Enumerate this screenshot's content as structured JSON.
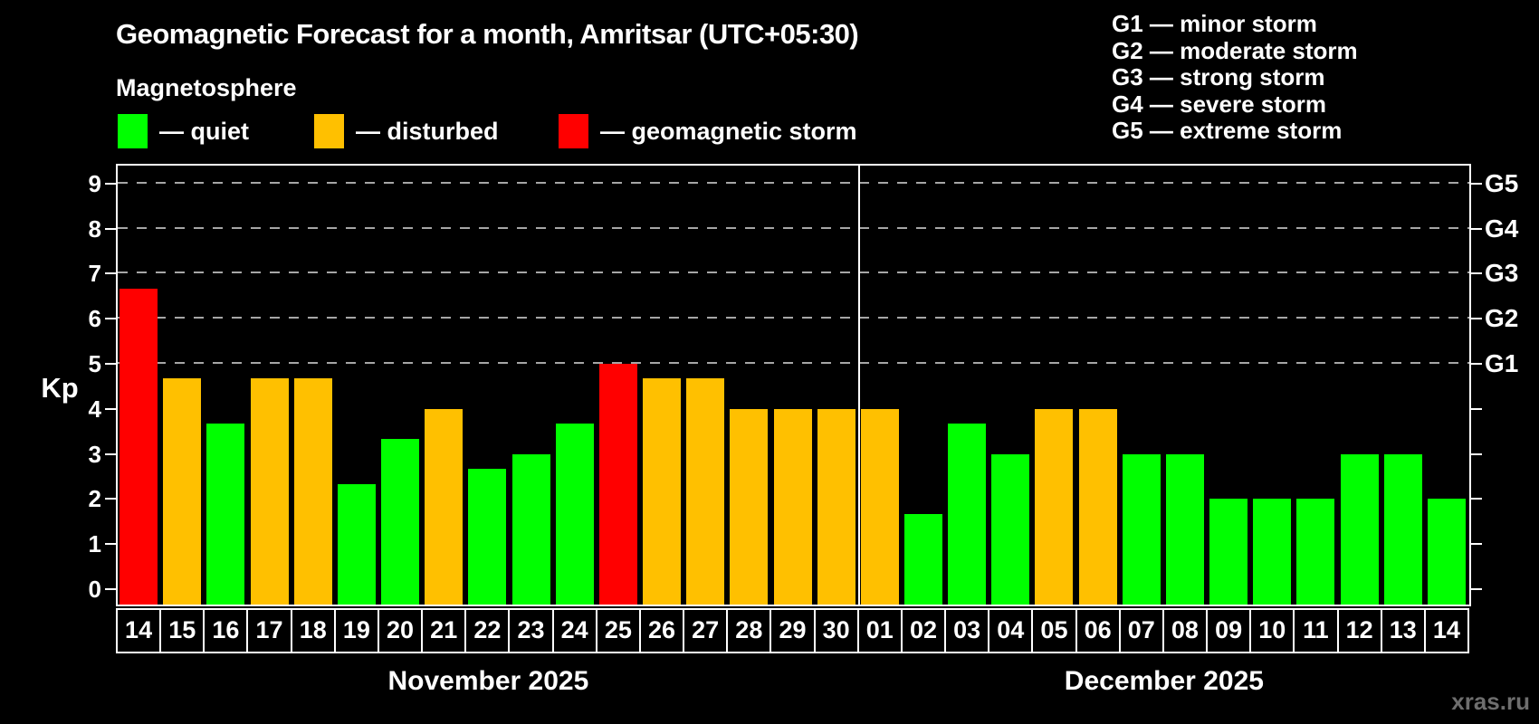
{
  "header": {
    "title": "Geomagnetic Forecast for a month, Amritsar (UTC+05:30)",
    "subtitle": "Magnetosphere"
  },
  "legend": {
    "items": [
      {
        "key": "quiet",
        "label": "— quiet",
        "color": "#00ff00"
      },
      {
        "key": "disturbed",
        "label": "— disturbed",
        "color": "#ffc000"
      },
      {
        "key": "storm",
        "label": "— geomagnetic storm",
        "color": "#ff0000"
      }
    ]
  },
  "storm_scale_legend": {
    "items": [
      "G1 — minor storm",
      "G2 — moderate storm",
      "G3 — strong storm",
      "G4 — severe storm",
      "G5 — extreme storm"
    ]
  },
  "watermark": "xras.ru",
  "chart_data": {
    "type": "bar",
    "title": "Geomagnetic Forecast for a month, Amritsar (UTC+05:30)",
    "ylabel": "Kp",
    "ylim": [
      0,
      9.4
    ],
    "yticks": [
      0,
      1,
      2,
      3,
      4,
      5,
      6,
      7,
      8,
      9
    ],
    "grid": {
      "style": "dashed-horizontal",
      "lines_at_kp": [
        5,
        6,
        7,
        8,
        9
      ]
    },
    "right_axis": [
      {
        "kp": 5,
        "label": "G1"
      },
      {
        "kp": 6,
        "label": "G2"
      },
      {
        "kp": 7,
        "label": "G3"
      },
      {
        "kp": 8,
        "label": "G4"
      },
      {
        "kp": 9,
        "label": "G5"
      }
    ],
    "legend_position": "top-left",
    "months": [
      {
        "label": "November 2025",
        "days": [
          {
            "date": "14",
            "kp": 6.67,
            "status": "storm"
          },
          {
            "date": "15",
            "kp": 4.67,
            "status": "disturbed"
          },
          {
            "date": "16",
            "kp": 3.67,
            "status": "quiet"
          },
          {
            "date": "17",
            "kp": 4.67,
            "status": "disturbed"
          },
          {
            "date": "18",
            "kp": 4.67,
            "status": "disturbed"
          },
          {
            "date": "19",
            "kp": 2.33,
            "status": "quiet"
          },
          {
            "date": "20",
            "kp": 3.33,
            "status": "quiet"
          },
          {
            "date": "21",
            "kp": 4.0,
            "status": "disturbed"
          },
          {
            "date": "22",
            "kp": 2.67,
            "status": "quiet"
          },
          {
            "date": "23",
            "kp": 3.0,
            "status": "quiet"
          },
          {
            "date": "24",
            "kp": 3.67,
            "status": "quiet"
          },
          {
            "date": "25",
            "kp": 5.0,
            "status": "storm"
          },
          {
            "date": "26",
            "kp": 4.67,
            "status": "disturbed"
          },
          {
            "date": "27",
            "kp": 4.67,
            "status": "disturbed"
          },
          {
            "date": "28",
            "kp": 4.0,
            "status": "disturbed"
          },
          {
            "date": "29",
            "kp": 4.0,
            "status": "disturbed"
          },
          {
            "date": "30",
            "kp": 4.0,
            "status": "disturbed"
          }
        ]
      },
      {
        "label": "December 2025",
        "days": [
          {
            "date": "01",
            "kp": 4.0,
            "status": "disturbed"
          },
          {
            "date": "02",
            "kp": 1.67,
            "status": "quiet"
          },
          {
            "date": "03",
            "kp": 3.67,
            "status": "quiet"
          },
          {
            "date": "04",
            "kp": 3.0,
            "status": "quiet"
          },
          {
            "date": "05",
            "kp": 4.0,
            "status": "disturbed"
          },
          {
            "date": "06",
            "kp": 4.0,
            "status": "disturbed"
          },
          {
            "date": "07",
            "kp": 3.0,
            "status": "quiet"
          },
          {
            "date": "08",
            "kp": 3.0,
            "status": "quiet"
          },
          {
            "date": "09",
            "kp": 2.0,
            "status": "quiet"
          },
          {
            "date": "10",
            "kp": 2.0,
            "status": "quiet"
          },
          {
            "date": "11",
            "kp": 2.0,
            "status": "quiet"
          },
          {
            "date": "12",
            "kp": 3.0,
            "status": "quiet"
          },
          {
            "date": "13",
            "kp": 3.0,
            "status": "quiet"
          },
          {
            "date": "14",
            "kp": 2.0,
            "status": "quiet"
          }
        ]
      }
    ]
  }
}
